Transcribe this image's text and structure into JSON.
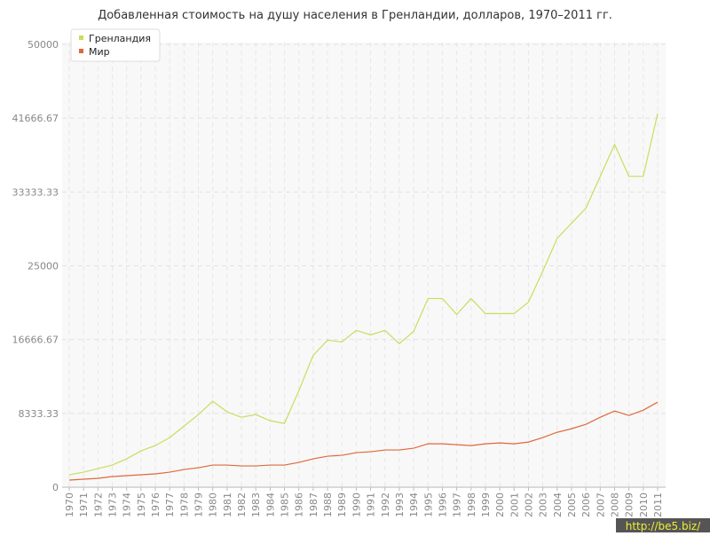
{
  "chart_data": {
    "type": "line",
    "title": "Добавленная стоимость на душу населения в Гренландии, долларов, 1970–2011 гг.",
    "categories": [
      "1970",
      "1971",
      "1972",
      "1973",
      "1974",
      "1975",
      "1976",
      "1977",
      "1978",
      "1979",
      "1980",
      "1981",
      "1982",
      "1983",
      "1984",
      "1985",
      "1986",
      "1987",
      "1988",
      "1989",
      "1990",
      "1991",
      "1992",
      "1993",
      "1994",
      "1995",
      "1996",
      "1997",
      "1998",
      "1999",
      "2000",
      "2001",
      "2002",
      "2003",
      "2004",
      "2005",
      "2006",
      "2007",
      "2008",
      "2009",
      "2010",
      "2011"
    ],
    "series": [
      {
        "name": "Гренландия",
        "color": "#c6df5c",
        "values": [
          1400,
          1700,
          2100,
          2500,
          3200,
          4100,
          4700,
          5600,
          6900,
          8200,
          9700,
          8500,
          7900,
          8200,
          7500,
          7200,
          10900,
          14900,
          16600,
          16400,
          17700,
          17200,
          17700,
          16200,
          17600,
          21300,
          21300,
          19500,
          21300,
          19600,
          19600,
          19600,
          20900,
          24400,
          28100,
          29800,
          31500,
          35100,
          38700,
          35100,
          35100,
          42200
        ]
      },
      {
        "name": "Мир",
        "color": "#e0683a",
        "values": [
          800,
          900,
          1000,
          1200,
          1300,
          1400,
          1500,
          1700,
          2000,
          2200,
          2500,
          2500,
          2400,
          2400,
          2500,
          2500,
          2800,
          3200,
          3500,
          3600,
          3900,
          4000,
          4200,
          4200,
          4400,
          4900,
          4900,
          4800,
          4700,
          4900,
          5000,
          4900,
          5100,
          5600,
          6200,
          6600,
          7100,
          7900,
          8600,
          8100,
          8700,
          9600
        ]
      }
    ],
    "ylim": [
      0,
      50000
    ],
    "yticks": [
      0,
      8333.33,
      16666.67,
      25000,
      33333.33,
      41666.67,
      50000
    ],
    "grid": true,
    "legend": "top-left",
    "watermark": "http://be5.biz/"
  }
}
